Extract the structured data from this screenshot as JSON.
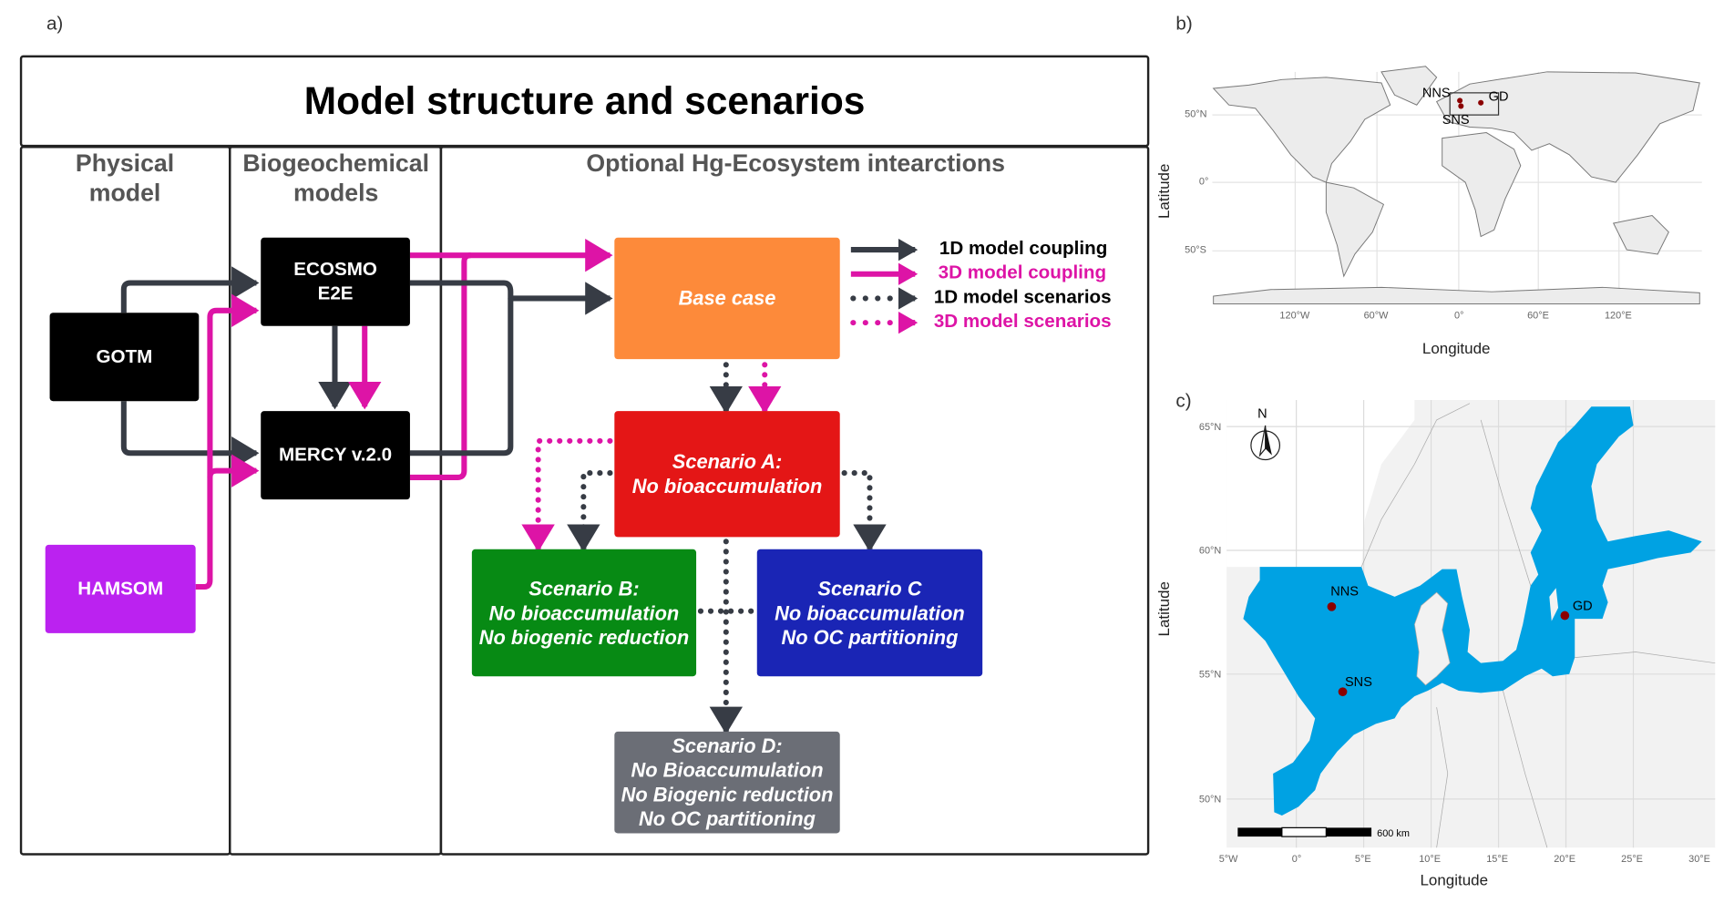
{
  "panel_a": {
    "label": "a)",
    "title": "Model structure and scenarios",
    "columns": [
      "Physical model",
      "Biogeochemical models",
      "Optional Hg-Ecosystem intearctions"
    ],
    "boxes": {
      "gotm": "GOTM",
      "hamsom": "HAMSOM",
      "ecosmo": [
        "ECOSMO",
        "E2E"
      ],
      "mercy": "MERCY v.2.0",
      "base": "Base case",
      "scenario_a": [
        "Scenario A:",
        "No bioaccumulation"
      ],
      "scenario_b": [
        "Scenario B:",
        "No bioaccumulation",
        "No biogenic reduction"
      ],
      "scenario_c": [
        "Scenario C",
        "No bioaccumulation",
        "No OC partitioning"
      ],
      "scenario_d": [
        "Scenario D:",
        "No Bioaccumulation",
        "No Biogenic reduction",
        "No OC partitioning"
      ]
    },
    "box_colors": {
      "gotm": "#000000",
      "hamsom": "#bb22f0",
      "ecosmo": "#000000",
      "mercy": "#000000",
      "base": "#fd8a3a",
      "scenario_a": "#e41616",
      "scenario_b": "#078a14",
      "scenario_c": "#1a25b5",
      "scenario_d": "#6b6e76"
    },
    "legend": [
      {
        "label": "1D model coupling",
        "style": "solid",
        "color": "#373c45"
      },
      {
        "label": "3D model coupling",
        "style": "solid",
        "color": "#dd14a6"
      },
      {
        "label": "1D model scenarios",
        "style": "dotted",
        "color": "#373c45"
      },
      {
        "label": "3D model scenarios",
        "style": "dotted",
        "color": "#dd14a6"
      }
    ]
  },
  "panel_b": {
    "label": "b)",
    "xlabel": "Longitude",
    "ylabel": "Latitude",
    "xticks": [
      "120°W",
      "60°W",
      "0°",
      "60°E",
      "120°E"
    ],
    "yticks": [
      "50°N",
      "0°",
      "50°S"
    ],
    "sites": [
      "NNS",
      "SNS",
      "GD"
    ]
  },
  "panel_c": {
    "label": "c)",
    "xlabel": "Longitude",
    "ylabel": "Latitude",
    "xticks": [
      "5°W",
      "0°",
      "5°E",
      "10°E",
      "15°E",
      "20°E",
      "25°E",
      "30°E"
    ],
    "yticks": [
      "65°N",
      "60°N",
      "55°N",
      "50°N"
    ],
    "north": "N",
    "scale_bar": "600 km",
    "sites": [
      "NNS",
      "SNS",
      "GD"
    ],
    "water_color": "#00a2e3",
    "site_color": "#8b0000"
  }
}
